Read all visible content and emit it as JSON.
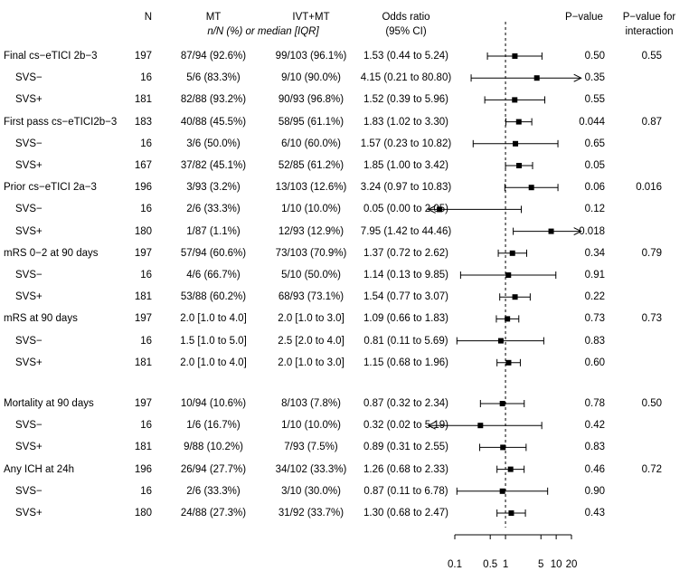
{
  "headers": {
    "n": "N",
    "mt": "MT",
    "ivt_mt": "IVT+MT",
    "subheader": "n/N (%) or median [IQR]",
    "or_line1": "Odds ratio",
    "or_line2": "(95% CI)",
    "pvalue": "P−value",
    "pinter_line1": "P−value for",
    "pinter_line2": "interaction"
  },
  "chart_data": {
    "type": "forest",
    "title": "",
    "xlabel": "",
    "x_scale": "log",
    "xlim": [
      0.1,
      20
    ],
    "reference_line": 1,
    "x_ticks": [
      0.1,
      0.5,
      1,
      5,
      10,
      20
    ],
    "x_tick_labels": [
      "0.1",
      "0.5",
      "1",
      "5",
      "10",
      "20"
    ],
    "rows": [
      {
        "label": "Final cs−eTICI 2b−3",
        "level": 0,
        "n": "197",
        "mt": "87/94 (92.6%)",
        "ivt": "99/103 (96.1%)",
        "or_text": "1.53 (0.44 to 5.24)",
        "or": 1.53,
        "lo": 0.44,
        "hi": 5.24,
        "p": "0.50",
        "p_int": "0.55"
      },
      {
        "label": "SVS−",
        "level": 1,
        "n": "16",
        "mt": "5/6 (83.3%)",
        "ivt": "9/10 (90.0%)",
        "or_text": "4.15 (0.21 to 80.80)",
        "or": 4.15,
        "lo": 0.21,
        "hi": 80.8,
        "p": "0.35",
        "p_int": ""
      },
      {
        "label": "SVS+",
        "level": 1,
        "n": "181",
        "mt": "82/88 (93.2%)",
        "ivt": "90/93 (96.8%)",
        "or_text": "1.52 (0.39 to 5.96)",
        "or": 1.52,
        "lo": 0.39,
        "hi": 5.96,
        "p": "0.55",
        "p_int": ""
      },
      {
        "label": "First pass cs−eTICI2b−3",
        "level": 0,
        "n": "183",
        "mt": "40/88 (45.5%)",
        "ivt": "58/95 (61.1%)",
        "or_text": "1.83 (1.02 to 3.30)",
        "or": 1.83,
        "lo": 1.02,
        "hi": 3.3,
        "p": "0.044",
        "p_int": "0.87"
      },
      {
        "label": "SVS−",
        "level": 1,
        "n": "16",
        "mt": "3/6 (50.0%)",
        "ivt": "6/10 (60.0%)",
        "or_text": "1.57 (0.23 to 10.82)",
        "or": 1.57,
        "lo": 0.23,
        "hi": 10.82,
        "p": "0.65",
        "p_int": ""
      },
      {
        "label": "SVS+",
        "level": 1,
        "n": "167",
        "mt": "37/82 (45.1%)",
        "ivt": "52/85 (61.2%)",
        "or_text": "1.85 (1.00 to 3.42)",
        "or": 1.85,
        "lo": 1.0,
        "hi": 3.42,
        "p": "0.05",
        "p_int": ""
      },
      {
        "label": "Prior cs−eTICI 2a−3",
        "level": 0,
        "n": "196",
        "mt": "3/93 (3.2%)",
        "ivt": "13/103 (12.6%)",
        "or_text": "3.24 (0.97 to 10.83)",
        "or": 3.24,
        "lo": 0.97,
        "hi": 10.83,
        "p": "0.06",
        "p_int": "0.016"
      },
      {
        "label": "SVS−",
        "level": 1,
        "n": "16",
        "mt": "2/6 (33.3%)",
        "ivt": "1/10 (10.0%)",
        "or_text": "0.05 (0.00 to 2.05)",
        "or": 0.05,
        "lo": 0.0,
        "hi": 2.05,
        "p": "0.12",
        "p_int": ""
      },
      {
        "label": "SVS+",
        "level": 1,
        "n": "180",
        "mt": "1/87 (1.1%)",
        "ivt": "12/93 (12.9%)",
        "or_text": "7.95 (1.42 to 44.46)",
        "or": 7.95,
        "lo": 1.42,
        "hi": 44.46,
        "p": "0.018",
        "p_int": ""
      },
      {
        "label": "mRS 0−2 at 90 days",
        "level": 0,
        "n": "197",
        "mt": "57/94 (60.6%)",
        "ivt": "73/103 (70.9%)",
        "or_text": "1.37 (0.72 to 2.62)",
        "or": 1.37,
        "lo": 0.72,
        "hi": 2.62,
        "p": "0.34",
        "p_int": "0.79"
      },
      {
        "label": "SVS−",
        "level": 1,
        "n": "16",
        "mt": "4/6 (66.7%)",
        "ivt": "5/10 (50.0%)",
        "or_text": "1.14 (0.13 to 9.85)",
        "or": 1.14,
        "lo": 0.13,
        "hi": 9.85,
        "p": "0.91",
        "p_int": ""
      },
      {
        "label": "SVS+",
        "level": 1,
        "n": "181",
        "mt": "53/88 (60.2%)",
        "ivt": "68/93 (73.1%)",
        "or_text": "1.54 (0.77 to 3.07)",
        "or": 1.54,
        "lo": 0.77,
        "hi": 3.07,
        "p": "0.22",
        "p_int": ""
      },
      {
        "label": "mRS at 90 days",
        "level": 0,
        "n": "197",
        "mt": "2.0 [1.0 to 4.0]",
        "ivt": "2.0 [1.0 to 3.0]",
        "or_text": "1.09 (0.66 to 1.83)",
        "or": 1.09,
        "lo": 0.66,
        "hi": 1.83,
        "p": "0.73",
        "p_int": "0.73"
      },
      {
        "label": "SVS−",
        "level": 1,
        "n": "16",
        "mt": "1.5 [1.0 to 5.0]",
        "ivt": "2.5 [2.0 to 4.0]",
        "or_text": "0.81 (0.11 to 5.69)",
        "or": 0.81,
        "lo": 0.11,
        "hi": 5.69,
        "p": "0.83",
        "p_int": ""
      },
      {
        "label": "SVS+",
        "level": 1,
        "n": "181",
        "mt": "2.0 [1.0 to 4.0]",
        "ivt": "2.0 [1.0 to 3.0]",
        "or_text": "1.15 (0.68 to 1.96)",
        "or": 1.15,
        "lo": 0.68,
        "hi": 1.96,
        "p": "0.60",
        "p_int": ""
      },
      {
        "label": "Mortality at 90 days",
        "level": 0,
        "n": "197",
        "mt": "10/94 (10.6%)",
        "ivt": "8/103 (7.8%)",
        "or_text": "0.87 (0.32 to 2.34)",
        "or": 0.87,
        "lo": 0.32,
        "hi": 2.34,
        "p": "0.78",
        "p_int": "0.50"
      },
      {
        "label": "SVS−",
        "level": 1,
        "n": "16",
        "mt": "1/6 (16.7%)",
        "ivt": "1/10 (10.0%)",
        "or_text": "0.32 (0.02 to 5.19)",
        "or": 0.32,
        "lo": 0.02,
        "hi": 5.19,
        "p": "0.42",
        "p_int": ""
      },
      {
        "label": "SVS+",
        "level": 1,
        "n": "181",
        "mt": "9/88 (10.2%)",
        "ivt": "7/93 (7.5%)",
        "or_text": "0.89 (0.31 to 2.55)",
        "or": 0.89,
        "lo": 0.31,
        "hi": 2.55,
        "p": "0.83",
        "p_int": ""
      },
      {
        "label": "Any ICH at 24h",
        "level": 0,
        "n": "196",
        "mt": "26/94 (27.7%)",
        "ivt": "34/102 (33.3%)",
        "or_text": "1.26 (0.68 to 2.33)",
        "or": 1.26,
        "lo": 0.68,
        "hi": 2.33,
        "p": "0.46",
        "p_int": "0.72"
      },
      {
        "label": "SVS−",
        "level": 1,
        "n": "16",
        "mt": "2/6 (33.3%)",
        "ivt": "3/10 (30.0%)",
        "or_text": "0.87 (0.11 to 6.78)",
        "or": 0.87,
        "lo": 0.11,
        "hi": 6.78,
        "p": "0.90",
        "p_int": ""
      },
      {
        "label": "SVS+",
        "level": 1,
        "n": "180",
        "mt": "24/88 (27.3%)",
        "ivt": "31/92 (33.7%)",
        "or_text": "1.30 (0.68 to 2.47)",
        "or": 1.3,
        "lo": 0.68,
        "hi": 2.47,
        "p": "0.43",
        "p_int": ""
      }
    ]
  }
}
